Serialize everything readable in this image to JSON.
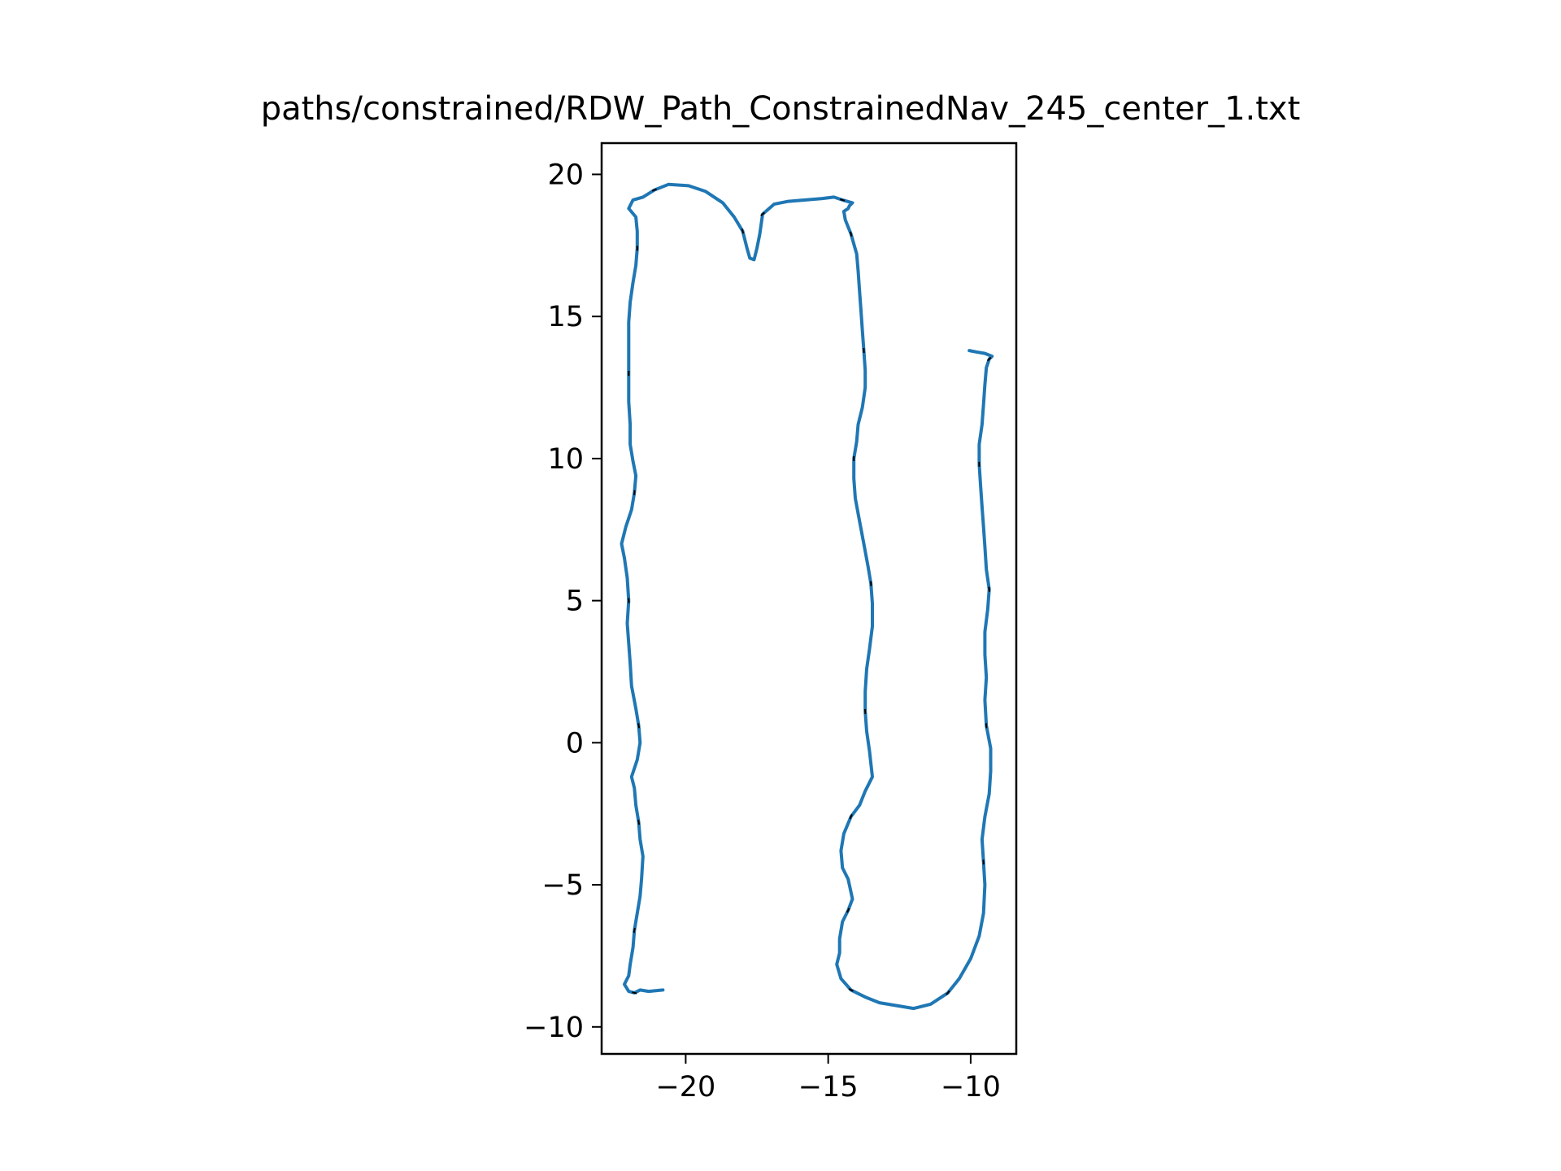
{
  "chart_data": {
    "type": "line",
    "title": "paths/constrained/RDW_Path_ConstrainedNav_245_center_1.txt",
    "xlabel": "",
    "ylabel": "",
    "xlim": [
      -22.95,
      -8.4
    ],
    "ylim": [
      -10.95,
      21.1
    ],
    "grid": false,
    "aspect": "equal",
    "xticks": [
      {
        "value": -20,
        "label": "−20"
      },
      {
        "value": -15,
        "label": "−15"
      },
      {
        "value": -10,
        "label": "−10"
      }
    ],
    "yticks": [
      {
        "value": 20,
        "label": "20"
      },
      {
        "value": 15,
        "label": "15"
      },
      {
        "value": 10,
        "label": "10"
      },
      {
        "value": 5,
        "label": "5"
      },
      {
        "value": 0,
        "label": "0"
      },
      {
        "value": -5,
        "label": "−5"
      },
      {
        "value": -10,
        "label": "−10"
      }
    ],
    "colors": {
      "path": "#1f77b4",
      "markers": "#000000",
      "axes": "#000000"
    },
    "series": [
      {
        "points": [
          [
            -20.8,
            -8.7
          ],
          [
            -21.3,
            -8.75
          ],
          [
            -21.6,
            -8.7
          ],
          [
            -21.8,
            -8.8
          ],
          [
            -22.0,
            -8.75
          ],
          [
            -22.15,
            -8.5
          ],
          [
            -22.0,
            -8.2
          ],
          [
            -21.95,
            -7.8
          ],
          [
            -21.85,
            -7.2
          ],
          [
            -21.8,
            -6.6
          ],
          [
            -21.7,
            -6.0
          ],
          [
            -21.6,
            -5.4
          ],
          [
            -21.55,
            -4.8
          ],
          [
            -21.5,
            -4.0
          ],
          [
            -21.6,
            -3.4
          ],
          [
            -21.65,
            -2.8
          ],
          [
            -21.75,
            -2.2
          ],
          [
            -21.8,
            -1.6
          ],
          [
            -21.9,
            -1.2
          ],
          [
            -21.7,
            -0.6
          ],
          [
            -21.6,
            0.0
          ],
          [
            -21.65,
            0.6
          ],
          [
            -21.75,
            1.2
          ],
          [
            -21.9,
            2.0
          ],
          [
            -21.95,
            2.8
          ],
          [
            -22.0,
            3.5
          ],
          [
            -22.05,
            4.2
          ],
          [
            -22.0,
            5.0
          ],
          [
            -22.05,
            5.8
          ],
          [
            -22.15,
            6.5
          ],
          [
            -22.25,
            7.0
          ],
          [
            -22.1,
            7.6
          ],
          [
            -21.9,
            8.2
          ],
          [
            -21.8,
            8.8
          ],
          [
            -21.75,
            9.4
          ],
          [
            -21.85,
            9.9
          ],
          [
            -21.95,
            10.5
          ],
          [
            -21.95,
            11.2
          ],
          [
            -22.0,
            12.0
          ],
          [
            -22.0,
            13.0
          ],
          [
            -22.0,
            14.0
          ],
          [
            -22.0,
            14.8
          ],
          [
            -21.95,
            15.5
          ],
          [
            -21.85,
            16.2
          ],
          [
            -21.75,
            16.8
          ],
          [
            -21.7,
            17.4
          ],
          [
            -21.7,
            18.0
          ],
          [
            -21.75,
            18.5
          ],
          [
            -22.0,
            18.8
          ],
          [
            -21.85,
            19.1
          ],
          [
            -21.5,
            19.2
          ],
          [
            -21.1,
            19.45
          ],
          [
            -20.6,
            19.65
          ],
          [
            -19.9,
            19.6
          ],
          [
            -19.3,
            19.4
          ],
          [
            -18.7,
            19.0
          ],
          [
            -18.3,
            18.5
          ],
          [
            -18.0,
            18.0
          ],
          [
            -17.85,
            17.4
          ],
          [
            -17.75,
            17.05
          ],
          [
            -17.6,
            17.0
          ],
          [
            -17.5,
            17.4
          ],
          [
            -17.4,
            17.9
          ],
          [
            -17.3,
            18.6
          ],
          [
            -16.9,
            18.95
          ],
          [
            -16.4,
            19.05
          ],
          [
            -15.8,
            19.1
          ],
          [
            -15.2,
            19.15
          ],
          [
            -14.8,
            19.2
          ],
          [
            -14.5,
            19.1
          ],
          [
            -14.15,
            19.0
          ],
          [
            -14.25,
            18.9
          ],
          [
            -14.3,
            18.8
          ],
          [
            -14.45,
            18.7
          ],
          [
            -14.4,
            18.4
          ],
          [
            -14.2,
            17.9
          ],
          [
            -14.0,
            17.2
          ],
          [
            -13.95,
            16.6
          ],
          [
            -13.9,
            15.9
          ],
          [
            -13.85,
            15.2
          ],
          [
            -13.8,
            14.5
          ],
          [
            -13.75,
            13.8
          ],
          [
            -13.7,
            13.1
          ],
          [
            -13.7,
            12.5
          ],
          [
            -13.8,
            11.8
          ],
          [
            -13.95,
            11.2
          ],
          [
            -14.0,
            10.6
          ],
          [
            -14.1,
            10.0
          ],
          [
            -14.1,
            9.3
          ],
          [
            -14.05,
            8.6
          ],
          [
            -13.9,
            7.8
          ],
          [
            -13.75,
            7.0
          ],
          [
            -13.6,
            6.2
          ],
          [
            -13.5,
            5.6
          ],
          [
            -13.45,
            4.9
          ],
          [
            -13.45,
            4.1
          ],
          [
            -13.55,
            3.3
          ],
          [
            -13.65,
            2.6
          ],
          [
            -13.7,
            1.8
          ],
          [
            -13.7,
            1.1
          ],
          [
            -13.65,
            0.4
          ],
          [
            -13.55,
            -0.3
          ],
          [
            -13.45,
            -1.2
          ],
          [
            -13.7,
            -1.7
          ],
          [
            -13.9,
            -2.2
          ],
          [
            -14.2,
            -2.6
          ],
          [
            -14.45,
            -3.2
          ],
          [
            -14.55,
            -3.8
          ],
          [
            -14.5,
            -4.4
          ],
          [
            -14.3,
            -4.8
          ],
          [
            -14.15,
            -5.5
          ],
          [
            -14.3,
            -5.9
          ],
          [
            -14.5,
            -6.3
          ],
          [
            -14.6,
            -6.9
          ],
          [
            -14.6,
            -7.4
          ],
          [
            -14.7,
            -7.8
          ],
          [
            -14.55,
            -8.3
          ],
          [
            -14.2,
            -8.7
          ],
          [
            -13.7,
            -8.95
          ],
          [
            -13.2,
            -9.15
          ],
          [
            -12.6,
            -9.25
          ],
          [
            -12.0,
            -9.35
          ],
          [
            -11.4,
            -9.2
          ],
          [
            -10.8,
            -8.8
          ],
          [
            -10.4,
            -8.3
          ],
          [
            -10.0,
            -7.6
          ],
          [
            -9.7,
            -6.8
          ],
          [
            -9.55,
            -6.0
          ],
          [
            -9.5,
            -5.0
          ],
          [
            -9.55,
            -4.2
          ],
          [
            -9.6,
            -3.4
          ],
          [
            -9.5,
            -2.6
          ],
          [
            -9.35,
            -1.8
          ],
          [
            -9.3,
            -1.0
          ],
          [
            -9.3,
            -0.2
          ],
          [
            -9.45,
            0.6
          ],
          [
            -9.5,
            1.5
          ],
          [
            -9.45,
            2.3
          ],
          [
            -9.5,
            3.1
          ],
          [
            -9.5,
            3.9
          ],
          [
            -9.4,
            4.7
          ],
          [
            -9.35,
            5.4
          ],
          [
            -9.45,
            6.1
          ],
          [
            -9.5,
            6.9
          ],
          [
            -9.55,
            7.6
          ],
          [
            -9.6,
            8.3
          ],
          [
            -9.65,
            9.0
          ],
          [
            -9.7,
            9.8
          ],
          [
            -9.7,
            10.5
          ],
          [
            -9.6,
            11.2
          ],
          [
            -9.55,
            11.9
          ],
          [
            -9.5,
            12.6
          ],
          [
            -9.45,
            13.2
          ],
          [
            -9.35,
            13.5
          ],
          [
            -9.25,
            13.6
          ],
          [
            -9.5,
            13.7
          ],
          [
            -9.8,
            13.75
          ],
          [
            -10.05,
            13.8
          ]
        ]
      }
    ]
  }
}
